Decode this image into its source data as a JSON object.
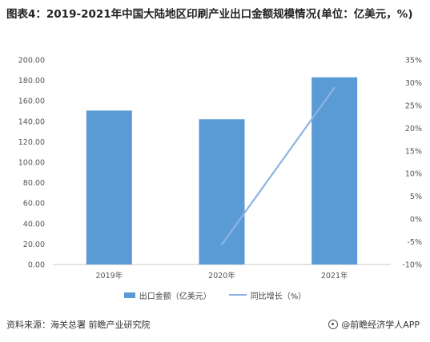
{
  "title": "图表4：2019-2021年中国大陆地区印刷产业出口金额规模情况(单位：亿美元，%)",
  "source": "资料来源：海关总署 前瞻产业研究院",
  "brand": "@前瞻经济学人APP",
  "brand_icon": "circle-logo-icon",
  "chart_data": {
    "type": "bar",
    "categories": [
      "2019年",
      "2020年",
      "2021年"
    ],
    "series": [
      {
        "name": "出口金额（亿美元）",
        "type": "bar",
        "axis": "left",
        "color": "#5b9bd5",
        "values": [
          150.5,
          142.0,
          183.0
        ]
      },
      {
        "name": "同比增长（%）",
        "type": "line",
        "axis": "right",
        "color": "#8db3e2",
        "values": [
          null,
          -5.6,
          28.9
        ]
      }
    ],
    "y_left": {
      "min": 0,
      "max": 200,
      "step": 20,
      "tick_labels": [
        "0.00",
        "20.00",
        "40.00",
        "60.00",
        "80.00",
        "100.00",
        "120.00",
        "140.00",
        "160.00",
        "180.00",
        "200.00"
      ]
    },
    "y_right": {
      "min": -10,
      "max": 35,
      "step": 5,
      "tick_labels": [
        "-10%",
        "-5%",
        "0%",
        "5%",
        "10%",
        "15%",
        "20%",
        "25%",
        "30%",
        "35%"
      ]
    },
    "grid": false,
    "legend_position": "bottom"
  }
}
